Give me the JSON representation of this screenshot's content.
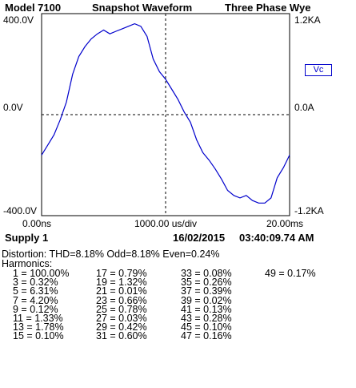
{
  "header": {
    "model": "Model 7100",
    "title": "Snapshot Waveform",
    "mode": "Three Phase Wye"
  },
  "axes": {
    "left_top": "400.0V",
    "left_mid": "0.0V",
    "left_bottom": "-400.0V",
    "right_top": "1.2KA",
    "right_mid": "0.0A",
    "right_bottom": "-1.2KA",
    "x_start": "0.00ns",
    "x_div": "1000.00 us/div",
    "x_end": "20.00ms"
  },
  "legend": {
    "label": "Vc",
    "color": "#0000cc"
  },
  "info": {
    "supply": "Supply 1",
    "date": "16/02/2015",
    "time": "03:40:09.74 AM"
  },
  "distortion": "Distortion: THD=8.18%  Odd=8.18%  Even=0.24%",
  "harmonics_label": "Harmonics:",
  "harmonics": [
    [
      "1 = 100.00%",
      "3 = 0.32%",
      "5 = 6.31%",
      "7 = 4.20%",
      "9 = 0.12%",
      "11 = 1.33%",
      "13 = 1.78%",
      "15 = 0.10%"
    ],
    [
      "17 = 0.79%",
      "19 = 1.32%",
      "21 = 0.01%",
      "23 = 0.66%",
      "25 = 0.78%",
      "27 = 0.03%",
      "29 = 0.42%",
      "31 = 0.60%"
    ],
    [
      "33 = 0.08%",
      "35 = 0.26%",
      "37 = 0.39%",
      "39 = 0.02%",
      "41 = 0.13%",
      "43 = 0.28%",
      "45 = 0.10%",
      "47 = 0.16%"
    ],
    [
      "49 = 0.17%"
    ]
  ],
  "chart_data": {
    "type": "line",
    "xlabel": "1000.00 us/div",
    "ylabel": "",
    "xlim": [
      0,
      20
    ],
    "ylim": [
      -400,
      400
    ],
    "grid": false,
    "series": [
      {
        "name": "Vc",
        "color": "#0000cc",
        "x": [
          0.0,
          0.5,
          1.0,
          1.5,
          2.0,
          2.5,
          3.0,
          3.5,
          4.0,
          4.5,
          5.0,
          5.5,
          6.0,
          6.5,
          7.0,
          7.5,
          8.0,
          8.5,
          9.0,
          9.5,
          10.0,
          10.5,
          11.0,
          11.5,
          12.0,
          12.5,
          13.0,
          13.5,
          14.0,
          14.5,
          15.0,
          15.5,
          16.0,
          16.5,
          17.0,
          17.5,
          18.0,
          18.5,
          19.0,
          19.5,
          20.0
        ],
        "values": [
          -160,
          -120,
          -80,
          -20,
          50,
          160,
          230,
          270,
          300,
          320,
          335,
          320,
          330,
          340,
          350,
          360,
          350,
          310,
          220,
          170,
          140,
          100,
          60,
          10,
          -30,
          -100,
          -150,
          -180,
          -215,
          -255,
          -300,
          -320,
          -330,
          -320,
          -340,
          -350,
          -350,
          -330,
          -250,
          -210,
          -160
        ]
      }
    ]
  }
}
